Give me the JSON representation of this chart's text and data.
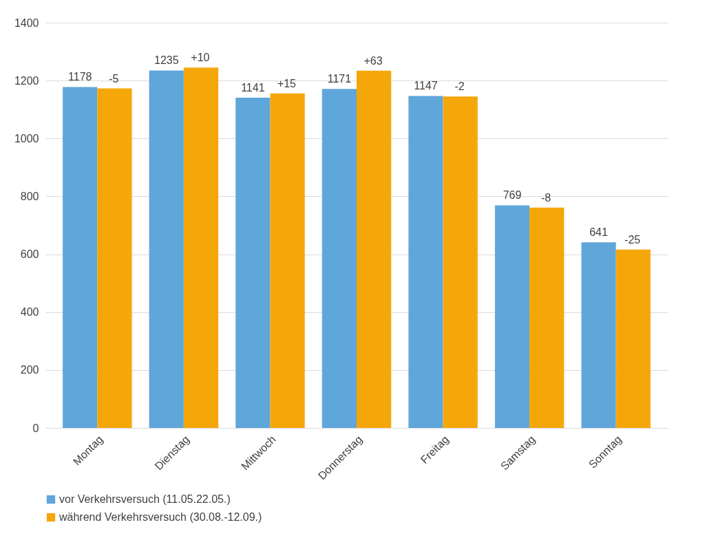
{
  "chart_data": {
    "type": "bar",
    "categories": [
      "Montag",
      "Dienstag",
      "Mittwoch",
      "Donnerstag",
      "Freitag",
      "Samstag",
      "Sonntag"
    ],
    "series": [
      {
        "name": "vor Verkehrsversuch (11.05.22.05.)",
        "color": "#5fa6da",
        "values": [
          1178,
          1235,
          1141,
          1171,
          1147,
          769,
          641
        ],
        "value_labels": [
          "1178",
          "1235",
          "1141",
          "1171",
          "1147",
          "769",
          "641"
        ]
      },
      {
        "name": "während Verkehrsversuch (30.08.-12.09.)",
        "color": "#f5a70a",
        "values": [
          1173,
          1245,
          1156,
          1234,
          1145,
          761,
          616
        ]
      }
    ],
    "annotations": [
      {
        "text": "-5",
        "x": "Montag",
        "y": 1173
      },
      {
        "text": "+10",
        "x": "Dienstag",
        "y": 1245
      },
      {
        "text": "+15",
        "x": "Mittwoch",
        "y": 1156
      },
      {
        "text": "+63",
        "x": "Donnerstag",
        "y": 1234
      },
      {
        "text": "-2",
        "x": "Freitag",
        "y": 1145
      },
      {
        "text": "-8",
        "x": "Samstag",
        "y": 761
      },
      {
        "text": "-25",
        "x": "Sonntag",
        "y": 616
      }
    ],
    "ylim": [
      0,
      1400
    ],
    "yticks": [
      0,
      200,
      400,
      600,
      800,
      1000,
      1200,
      1400
    ],
    "grid": "y",
    "legend": "bottom"
  }
}
